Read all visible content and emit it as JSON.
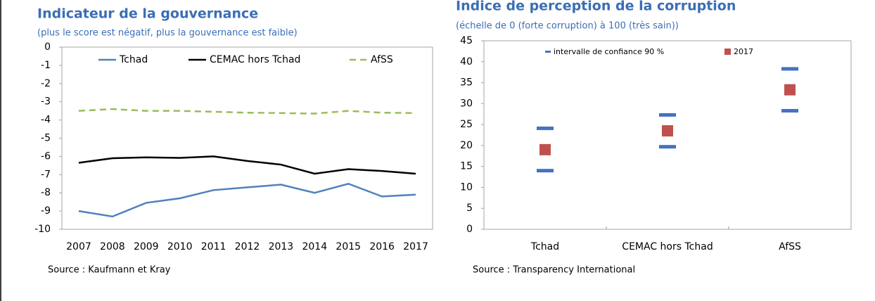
{
  "chart_data": [
    {
      "type": "line",
      "title": "Indicateur de la gouvernance",
      "subtitle": "(plus le score est négatif, plus la gouvernance est faible)",
      "source": "Source : Kaufmann et Kray",
      "categories": [
        "2007",
        "2008",
        "2009",
        "2010",
        "2011",
        "2012",
        "2013",
        "2014",
        "2015",
        "2016",
        "2017"
      ],
      "ylim": [
        -10,
        0
      ],
      "yticks": [
        0,
        -1,
        -2,
        -3,
        -4,
        -5,
        -6,
        -7,
        -8,
        -9,
        -10
      ],
      "series": [
        {
          "name": "Tchad",
          "color": "#4f81bd",
          "dash": false,
          "values": [
            -9.0,
            -9.3,
            -8.55,
            -8.3,
            -7.85,
            -7.7,
            -7.55,
            -8.0,
            -7.5,
            -8.2,
            -8.1
          ]
        },
        {
          "name": "CEMAC hors Tchad",
          "color": "#000000",
          "dash": false,
          "values": [
            -6.35,
            -6.1,
            -6.05,
            -6.08,
            -6.0,
            -6.25,
            -6.45,
            -6.95,
            -6.7,
            -6.8,
            -6.95
          ]
        },
        {
          "name": "AfSS",
          "color": "#9bbb59",
          "dash": true,
          "values": [
            -3.5,
            -3.4,
            -3.5,
            -3.5,
            -3.55,
            -3.6,
            -3.62,
            -3.65,
            -3.5,
            -3.6,
            -3.62
          ]
        }
      ]
    },
    {
      "type": "interval",
      "title": "Indice de perception de la corruption",
      "subtitle": "(échelle de 0 (forte corruption) à 100 (très sain))",
      "source": "Source : Transparency International",
      "categories": [
        "Tchad",
        "CEMAC hors Tchad",
        "AfSS"
      ],
      "ylim": [
        0,
        45
      ],
      "yticks": [
        0,
        5,
        10,
        15,
        20,
        25,
        30,
        35,
        40,
        45
      ],
      "series": [
        {
          "name": "intervalle de confiance 90 %",
          "color": "#4472c4",
          "low": [
            14,
            19.7,
            28.3
          ],
          "high": [
            24.1,
            27.3,
            38.3
          ]
        },
        {
          "name": "2017",
          "color": "#c0504d",
          "values": [
            19,
            23.5,
            33.3
          ]
        }
      ]
    }
  ]
}
